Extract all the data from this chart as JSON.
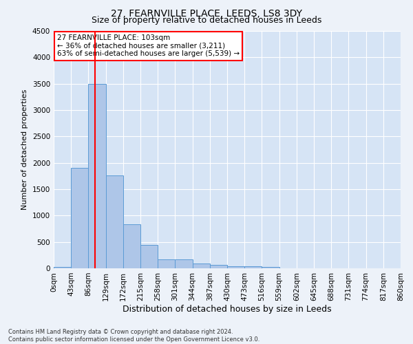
{
  "title": "27, FEARNVILLE PLACE, LEEDS, LS8 3DY",
  "subtitle": "Size of property relative to detached houses in Leeds",
  "xlabel": "Distribution of detached houses by size in Leeds",
  "ylabel": "Number of detached properties",
  "bin_labels": [
    "0sqm",
    "43sqm",
    "86sqm",
    "129sqm",
    "172sqm",
    "215sqm",
    "258sqm",
    "301sqm",
    "344sqm",
    "387sqm",
    "430sqm",
    "473sqm",
    "516sqm",
    "559sqm",
    "602sqm",
    "645sqm",
    "688sqm",
    "731sqm",
    "774sqm",
    "817sqm",
    "860sqm"
  ],
  "bar_heights": [
    30,
    1900,
    3500,
    1760,
    840,
    440,
    170,
    165,
    90,
    60,
    45,
    35,
    25,
    0,
    0,
    0,
    0,
    0,
    0,
    0
  ],
  "bar_color": "#aec6e8",
  "bar_edge_color": "#5b9bd5",
  "vline_x": 2.4,
  "vline_color": "red",
  "annotation_text": "27 FEARNVILLE PLACE: 103sqm\n← 36% of detached houses are smaller (3,211)\n63% of semi-detached houses are larger (5,539) →",
  "annotation_box_color": "white",
  "annotation_box_edge_color": "red",
  "ylim": [
    0,
    4500
  ],
  "yticks": [
    0,
    500,
    1000,
    1500,
    2000,
    2500,
    3000,
    3500,
    4000,
    4500
  ],
  "footer_line1": "Contains HM Land Registry data © Crown copyright and database right 2024.",
  "footer_line2": "Contains public sector information licensed under the Open Government Licence v3.0.",
  "bg_color": "#edf2f9",
  "plot_bg_color": "#d6e4f5",
  "title_fontsize": 10,
  "subtitle_fontsize": 9,
  "ylabel_fontsize": 8,
  "xlabel_fontsize": 9,
  "tick_fontsize": 7.5,
  "annotation_fontsize": 7.5,
  "footer_fontsize": 6
}
